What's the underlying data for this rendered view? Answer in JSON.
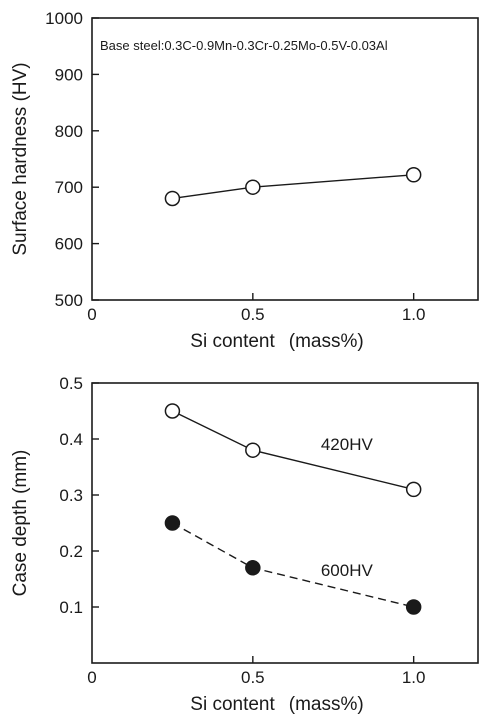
{
  "chart_data": [
    {
      "type": "line",
      "title": "",
      "annotation": "Base steel:0.3C-0.9Mn-0.3Cr-0.25Mo-0.5V-0.03Al",
      "xlabel": "Si content",
      "xlabel_unit": "(mass%)",
      "ylabel": "Surface hardness (HV)",
      "xlim": [
        0,
        1.2
      ],
      "ylim": [
        500,
        1000
      ],
      "x_ticks": [
        0,
        0.5,
        1.0
      ],
      "x_tick_labels": [
        "0",
        "0.5",
        "1.0"
      ],
      "y_ticks": [
        500,
        600,
        700,
        800,
        900,
        1000
      ],
      "y_tick_labels": [
        "500",
        "600",
        "700",
        "800",
        "900",
        "1000"
      ],
      "grid": false,
      "series": [
        {
          "x": [
            0.25,
            0.5,
            1.0
          ],
          "y": [
            680,
            700,
            722
          ],
          "marker": "open-circle",
          "line": "solid",
          "color": "#1a1a1a"
        }
      ]
    },
    {
      "type": "line",
      "title": "",
      "xlabel": "Si content",
      "xlabel_unit": "(mass%)",
      "ylabel": "Case depth (mm)",
      "xlim": [
        0,
        1.2
      ],
      "ylim": [
        0,
        0.5
      ],
      "x_ticks": [
        0,
        0.5,
        1.0
      ],
      "x_tick_labels": [
        "0",
        "0.5",
        "1.0"
      ],
      "y_ticks": [
        0.1,
        0.2,
        0.3,
        0.4,
        0.5
      ],
      "y_tick_labels": [
        "0.1",
        "0.2",
        "0.3",
        "0.4",
        "0.5"
      ],
      "grid": false,
      "series": [
        {
          "name": "420HV",
          "x": [
            0.25,
            0.5,
            1.0
          ],
          "y": [
            0.45,
            0.38,
            0.31
          ],
          "marker": "open-circle",
          "line": "solid",
          "color": "#1a1a1a"
        },
        {
          "name": "600HV",
          "x": [
            0.25,
            0.5,
            1.0
          ],
          "y": [
            0.25,
            0.17,
            0.1
          ],
          "marker": "filled-circle",
          "line": "dashed",
          "color": "#1a1a1a"
        }
      ]
    }
  ]
}
